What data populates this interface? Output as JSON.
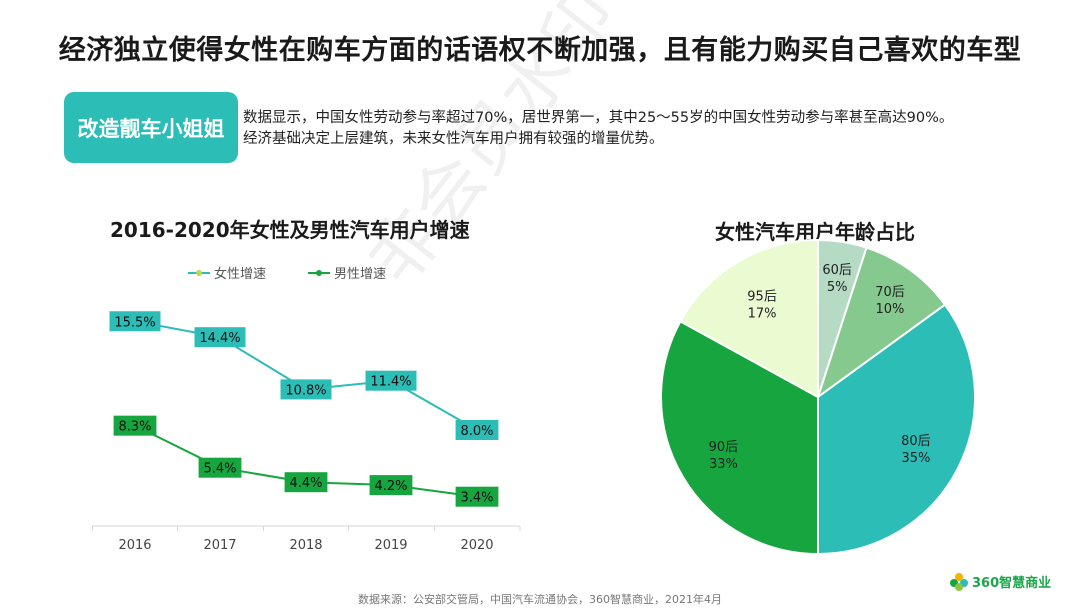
{
  "page": {
    "title": "经济独立使得女性在购车方面的话语权不断加强，且有能力购买自己喜欢的车型",
    "tag": "改造靓车小姐姐",
    "description_line1": "数据显示，中国女性劳动参与率超过70%，居世界第一，其中25～55岁的中国女性劳动参与率甚至高达90%。",
    "description_line2": "经济基础决定上层建筑，未来女性汽车用户拥有较强的增量优势。",
    "watermark": "非会员水印",
    "source": "数据来源：公安部交管局，中国汽车流通协会，360智慧商业，2021年4月",
    "logo_text": "360智慧商业"
  },
  "colors": {
    "teal": "#2bbdb6",
    "green": "#16a53e",
    "pie": [
      "#b5dbc4",
      "#86c98f",
      "#2bbdb6",
      "#16a53e",
      "#eafad1"
    ]
  },
  "chart_data": [
    {
      "type": "line",
      "title": "2016-2020年女性及男性汽车用户增速",
      "categories": [
        "2016",
        "2017",
        "2018",
        "2019",
        "2020"
      ],
      "series": [
        {
          "name": "女性增速",
          "values": [
            15.5,
            14.4,
            10.8,
            11.4,
            8.0
          ],
          "labels": [
            "15.5%",
            "14.4%",
            "10.8%",
            "11.4%",
            "8.0%"
          ]
        },
        {
          "name": "男性增速",
          "values": [
            8.3,
            5.4,
            4.4,
            4.2,
            3.4
          ],
          "labels": [
            "8.3%",
            "5.4%",
            "4.4%",
            "4.2%",
            "3.4%"
          ]
        }
      ],
      "legend": "top-left",
      "grid": false
    },
    {
      "type": "pie",
      "title": "女性汽车用户年龄占比",
      "slices": [
        {
          "name": "60后",
          "value": 5,
          "label": "5%"
        },
        {
          "name": "70后",
          "value": 10,
          "label": "10%"
        },
        {
          "name": "80后",
          "value": 35,
          "label": "35%"
        },
        {
          "name": "90后",
          "value": 33,
          "label": "33%"
        },
        {
          "name": "95后",
          "value": 17,
          "label": "17%"
        }
      ]
    }
  ]
}
